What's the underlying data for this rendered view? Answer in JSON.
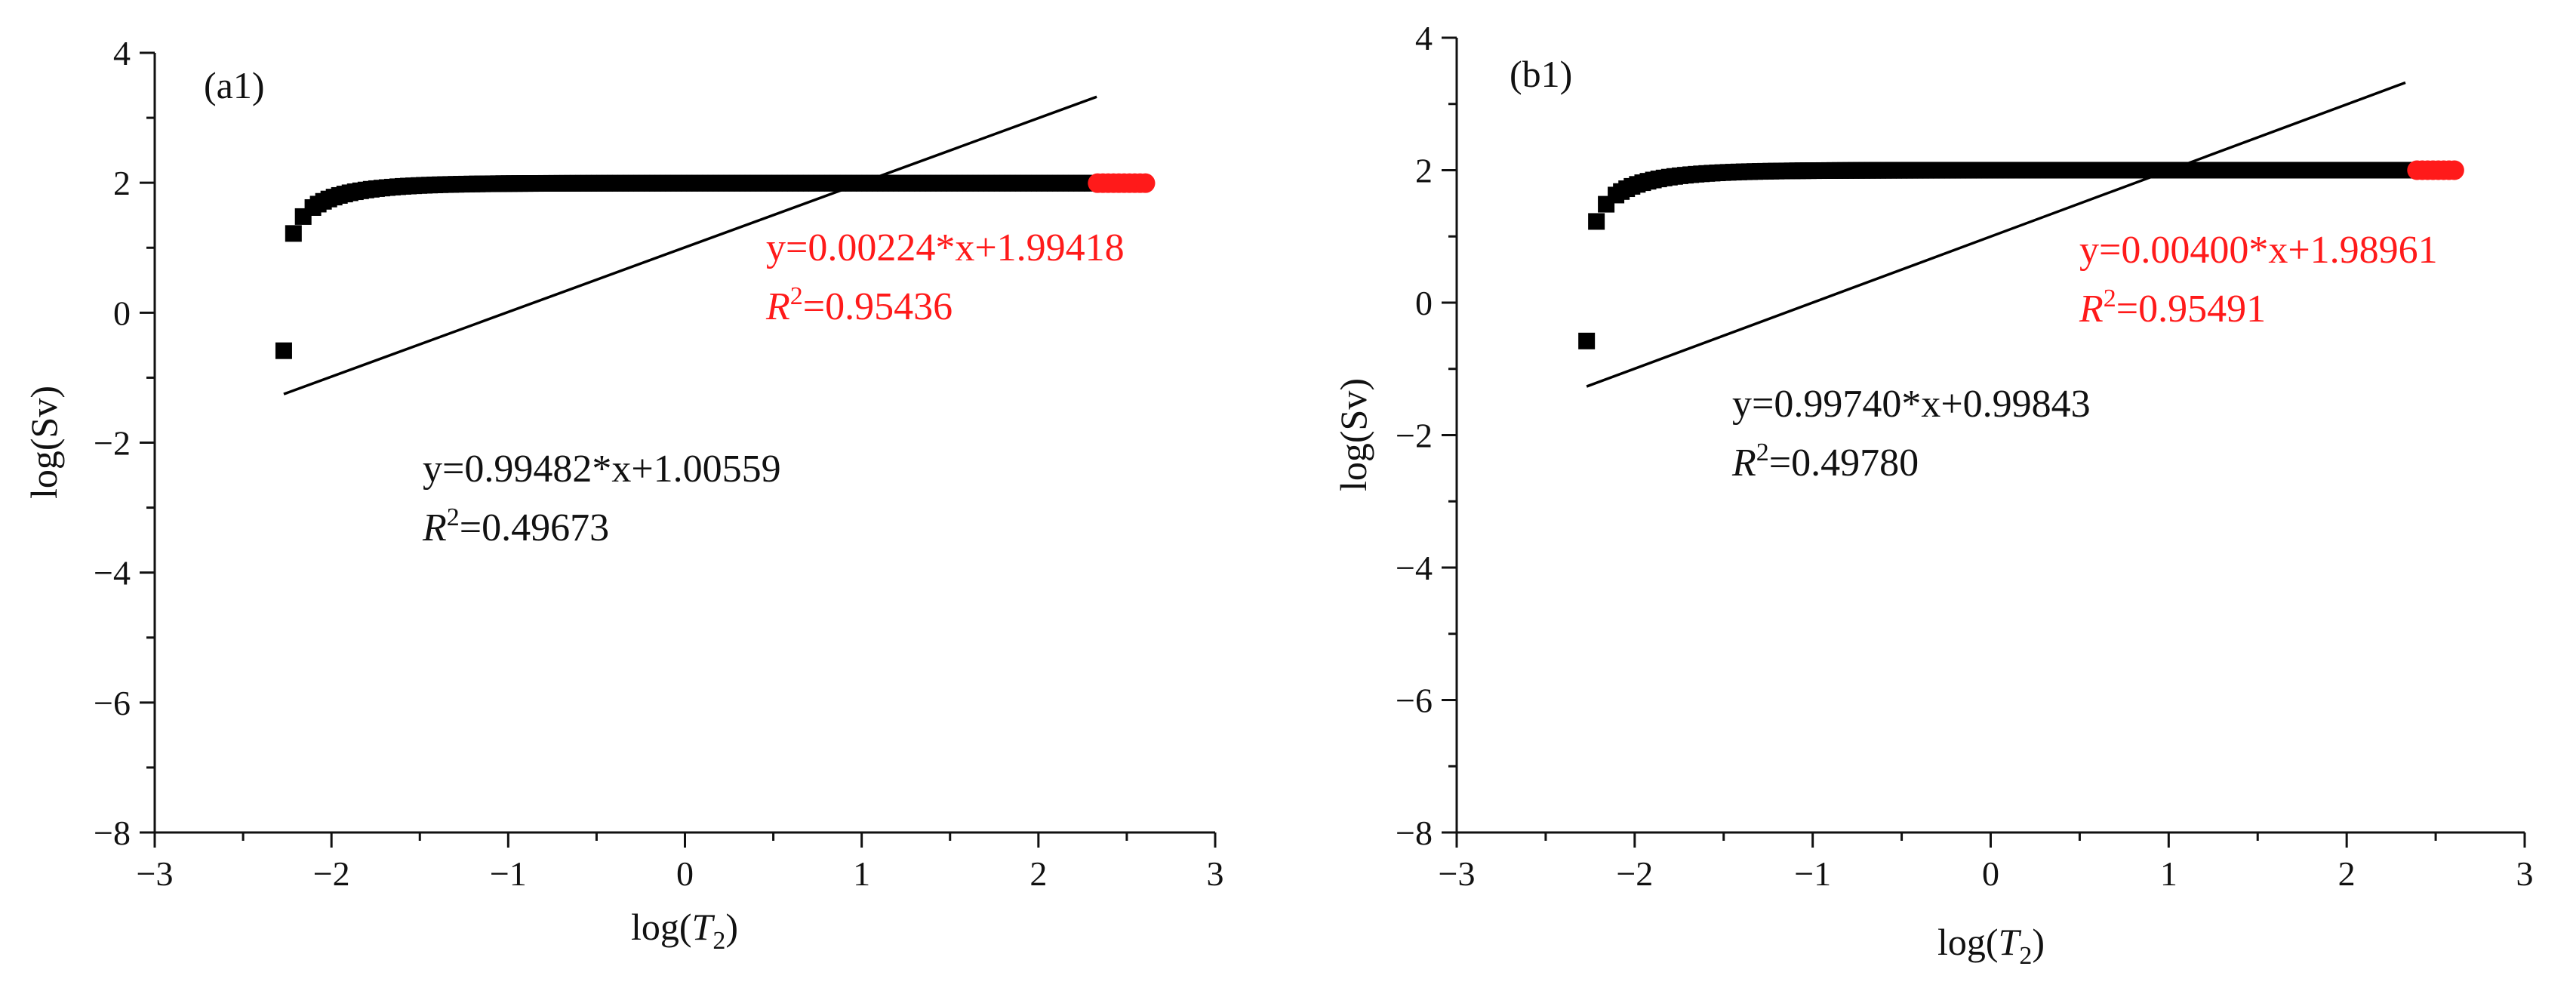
{
  "chart_data": [
    {
      "type": "scatter",
      "panel_label": "(a1)",
      "xlabel_main": "log(",
      "xlabel_var": "T",
      "xlabel_sub": "2",
      "xlabel_close": ")",
      "ylabel": "log(Sv)",
      "xlim": [
        -3,
        3
      ],
      "ylim": [
        -8,
        4
      ],
      "x_ticks": [
        -3,
        -2,
        -1,
        0,
        1,
        2,
        3
      ],
      "y_ticks": [
        -8,
        -6,
        -4,
        -2,
        0,
        2,
        4
      ],
      "x_tick_labels": [
        "−3",
        "−2",
        "−1",
        "0",
        "1",
        "2",
        "3"
      ],
      "y_tick_labels": [
        "−8",
        "−6",
        "−4",
        "−2",
        "0",
        "2",
        "4"
      ],
      "grid": false,
      "marker_color": "#000000",
      "highlight_color": "#ff1a1a",
      "fit_line_color": "#000000",
      "curve": {
        "x_start": -2.27,
        "x_end": 2.63,
        "plateau": 1.994,
        "scale": 0.33,
        "red_from": 2.33
      },
      "fit_overall": {
        "slope": 0.99482,
        "intercept": 1.00559,
        "x_range": [
          -2.27,
          2.33
        ],
        "text": "y=0.99482*x+1.00559",
        "r2_label": "R",
        "r2_sup": "2",
        "r2_value": "=0.49673"
      },
      "fit_plateau": {
        "slope": 0.00224,
        "intercept": 1.99418,
        "text": "y=0.00224*x+1.99418",
        "r2_label": "R",
        "r2_sup": "2",
        "r2_value": "=0.95436"
      }
    },
    {
      "type": "scatter",
      "panel_label": "(b1)",
      "xlabel_main": "log(",
      "xlabel_var": "T",
      "xlabel_sub": "2",
      "xlabel_close": ")",
      "ylabel": "log(Sv)",
      "xlim": [
        -3,
        3
      ],
      "ylim": [
        -8,
        4
      ],
      "x_ticks": [
        -3,
        -2,
        -1,
        0,
        1,
        2,
        3
      ],
      "y_ticks": [
        -8,
        -6,
        -4,
        -2,
        0,
        2,
        4
      ],
      "x_tick_labels": [
        "−3",
        "−2",
        "−1",
        "0",
        "1",
        "2",
        "3"
      ],
      "y_tick_labels": [
        "−8",
        "−6",
        "−4",
        "−2",
        "0",
        "2",
        "4"
      ],
      "grid": false,
      "marker_color": "#000000",
      "highlight_color": "#ff1a1a",
      "fit_line_color": "#000000",
      "curve": {
        "x_start": -2.27,
        "x_end": 2.63,
        "plateau": 2.0,
        "scale": 0.33,
        "red_from": 2.38
      },
      "fit_overall": {
        "slope": 0.9974,
        "intercept": 0.99843,
        "x_range": [
          -2.27,
          2.33
        ],
        "text": "y=0.99740*x+0.99843",
        "r2_label": "R",
        "r2_sup": "2",
        "r2_value": "=0.49780"
      },
      "fit_plateau": {
        "slope": 0.004,
        "intercept": 1.98961,
        "text": "y=0.00400*x+1.98961",
        "r2_label": "R",
        "r2_sup": "2",
        "r2_value": "=0.95491"
      }
    }
  ]
}
